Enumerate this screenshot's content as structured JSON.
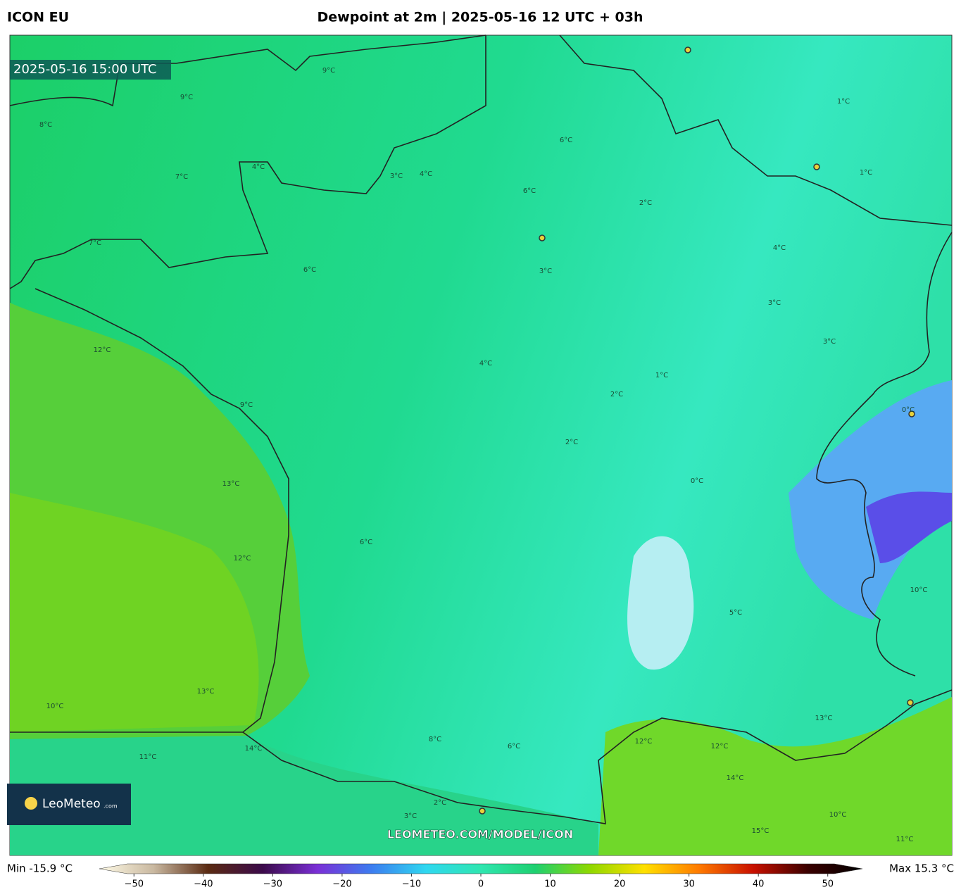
{
  "header": {
    "model": "ICON EU",
    "title": "Dewpoint at 2m | 2025-05-16 12 UTC + 03h"
  },
  "map": {
    "valid_time": "2025-05-16 15:00 UTC",
    "watermark": "LEOMETEO.COM/MODEL/ICON",
    "logo": {
      "name": "LeoMeteo",
      "suffix": ".com"
    },
    "contour_labels": [
      "9°C",
      "8°C",
      "9°C",
      "6°C",
      "7°C",
      "4°C",
      "3°C",
      "4°C",
      "6°C",
      "7°C",
      "6°C",
      "3°C",
      "2°C",
      "4°C",
      "3°C",
      "1°C",
      "2°C",
      "1°C",
      "0°C",
      "1°C",
      "3°C",
      "2°C",
      "0°C",
      "12°C",
      "13°C",
      "12°C",
      "13°C",
      "10°C",
      "11°C",
      "14°C",
      "12°C",
      "13°C",
      "14°C",
      "15°C",
      "10°C",
      "11°C",
      "12°C",
      "8°C",
      "6°C",
      "2°C",
      "3°C",
      "9°C",
      "5°C",
      "6°C",
      "4°C",
      "10°C"
    ]
  },
  "legend": {
    "min": "Min -15.9 °C",
    "max": "Max 15.3 °C",
    "colors": [
      "#fffbe6",
      "#c9b8a0",
      "#5a2a12",
      "#3b0a4a",
      "#7a2fd6",
      "#3c7df0",
      "#2fd8f0",
      "#2fe6b0",
      "#1ed070",
      "#8fd800",
      "#ffe000",
      "#ff7a00",
      "#c81000",
      "#3a0000",
      "#000000"
    ],
    "ticks": [
      {
        "value": -50,
        "label": "−50"
      },
      {
        "value": -40,
        "label": "−40"
      },
      {
        "value": -30,
        "label": "−30"
      },
      {
        "value": -20,
        "label": "−20"
      },
      {
        "value": -10,
        "label": "−10"
      },
      0,
      10,
      20,
      30,
      40,
      50
    ],
    "range": [
      -55,
      55
    ]
  }
}
